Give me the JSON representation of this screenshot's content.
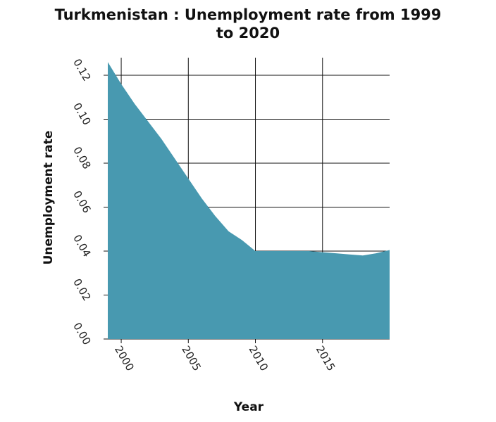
{
  "title_line1": "Turkmenistan : Unemployment rate from 1999",
  "title_line2": "to 2020",
  "chart_data": {
    "type": "area",
    "title": "Turkmenistan : Unemployment rate from 1999 to 2020",
    "xlabel": "Year",
    "ylabel": "Unemployment rate",
    "x": [
      1999,
      2000,
      2001,
      2002,
      2003,
      2004,
      2005,
      2006,
      2007,
      2008,
      2009,
      2010,
      2011,
      2012,
      2013,
      2014,
      2015,
      2016,
      2017,
      2018,
      2019,
      2020
    ],
    "values": [
      0.126,
      0.116,
      0.107,
      0.099,
      0.091,
      0.082,
      0.073,
      0.064,
      0.056,
      0.049,
      0.045,
      0.04,
      0.04,
      0.04,
      0.04,
      0.04,
      0.0395,
      0.039,
      0.0385,
      0.038,
      0.039,
      0.0405
    ],
    "xlim": [
      1999,
      2020
    ],
    "ylim": [
      0,
      0.128
    ],
    "xticks": [
      2000,
      2005,
      2010,
      2015
    ],
    "xtick_labels": [
      "2000",
      "2005",
      "2010",
      "2015"
    ],
    "yticks": [
      0,
      0.02,
      0.04,
      0.06,
      0.08,
      0.1,
      0.12
    ],
    "ytick_labels": [
      "0.00",
      "0.02",
      "0.04",
      "0.06",
      "0.08",
      "0.10",
      "0.12"
    ],
    "grid": true,
    "fill_color": "#4899b0",
    "grid_color": "#111111"
  }
}
